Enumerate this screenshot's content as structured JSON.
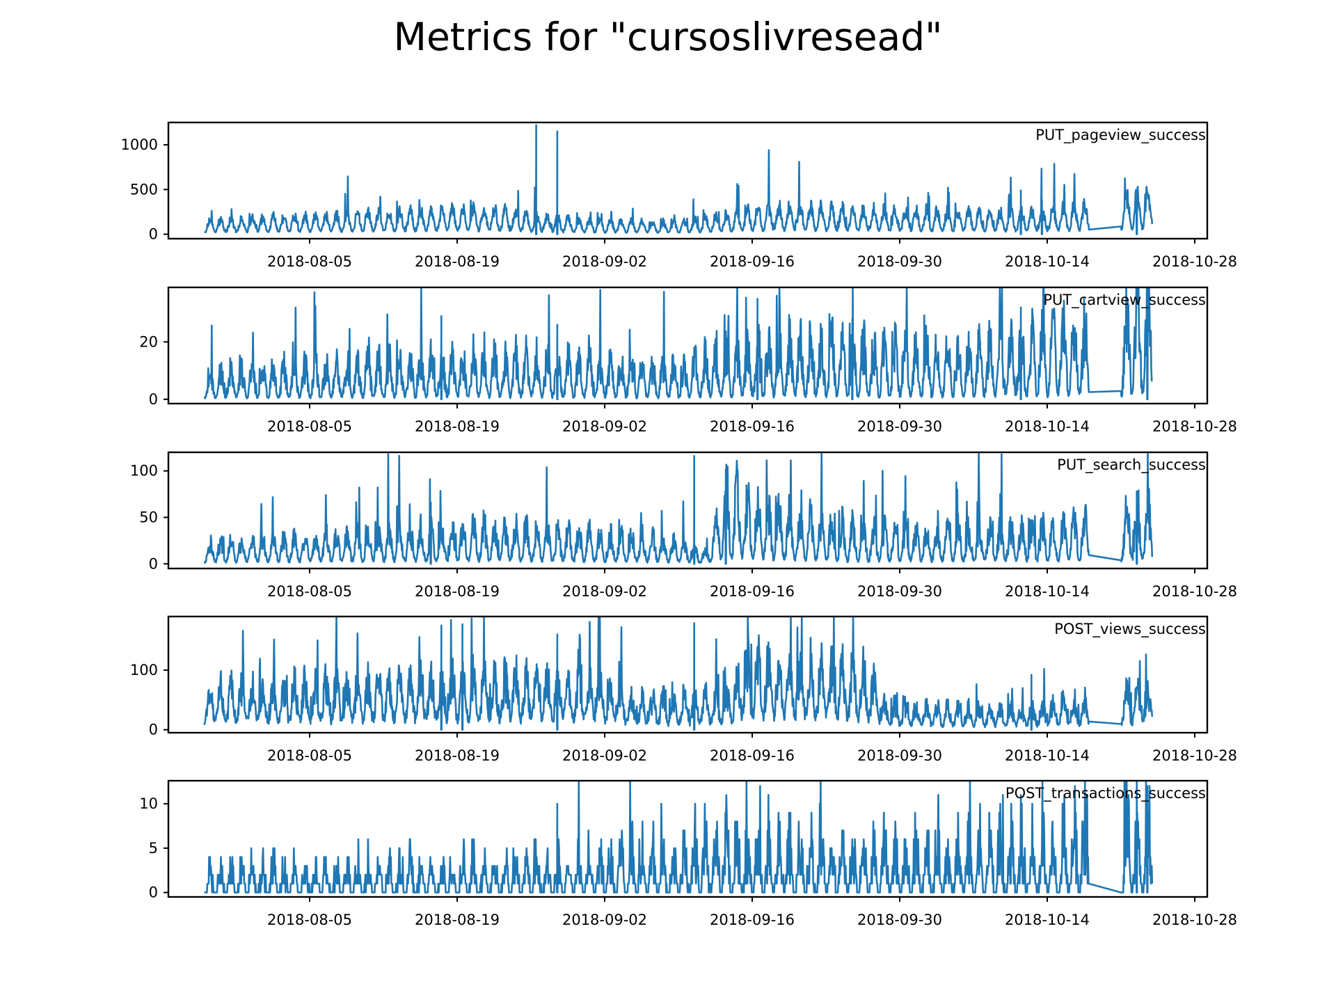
{
  "title": "Metrics for \"cursoslivresead\"",
  "colors": {
    "series": "#1f77b4",
    "axis": "#000000",
    "background": "#ffffff"
  },
  "chart_data": {
    "type": "line",
    "title": "Metrics for \"cursoslivresead\"",
    "x_range": [
      "2018-07-26",
      "2018-10-24"
    ],
    "x_ticks": [
      "2018-08-05",
      "2018-08-19",
      "2018-09-02",
      "2018-09-16",
      "2018-09-30",
      "2018-10-14",
      "2018-10-28"
    ],
    "gap": [
      "2018-10-18",
      "2018-10-21"
    ],
    "panels": [
      {
        "name": "PUT_pageview_success",
        "ylim": [
          -50,
          1250
        ],
        "yticks": [
          "0",
          "500",
          "1000"
        ],
        "base": [
          [
            0,
            90
          ],
          [
            0.2,
            140
          ],
          [
            0.3,
            170
          ],
          [
            0.33,
            140
          ],
          [
            0.4,
            90
          ],
          [
            0.5,
            75
          ],
          [
            0.6,
            180
          ],
          [
            0.65,
            170
          ],
          [
            0.75,
            150
          ],
          [
            0.82,
            140
          ],
          [
            0.88,
            150
          ],
          [
            0.93,
            190
          ],
          [
            1,
            280
          ]
        ],
        "daily_amp": 0.75,
        "noise": 0.2,
        "spikes": [
          [
            "2018-08-26",
            1220
          ],
          [
            "2018-08-28",
            1150
          ],
          [
            "2018-10-11",
            490
          ],
          [
            "2018-10-13",
            380
          ],
          [
            "2018-10-22",
            450
          ]
        ]
      },
      {
        "name": "PUT_cartview_success",
        "ylim": [
          -1.5,
          39
        ],
        "yticks": [
          "0",
          "20"
        ],
        "base": [
          [
            0,
            5
          ],
          [
            0.3,
            8
          ],
          [
            0.5,
            6
          ],
          [
            0.6,
            11
          ],
          [
            0.8,
            9
          ],
          [
            0.95,
            14
          ],
          [
            1,
            20
          ]
        ],
        "daily_amp": 0.9,
        "noise": 0.35,
        "spikes": [
          [
            "2018-08-17",
            29
          ],
          [
            "2018-08-28",
            26
          ],
          [
            "2018-09-16",
            35
          ],
          [
            "2018-09-25",
            28
          ],
          [
            "2018-10-11",
            32
          ],
          [
            "2018-10-23",
            38
          ]
        ]
      },
      {
        "name": "PUT_search_success",
        "ylim": [
          -5,
          120
        ],
        "yticks": [
          "0",
          "50",
          "100"
        ],
        "base": [
          [
            0,
            12
          ],
          [
            0.3,
            22
          ],
          [
            0.48,
            15
          ],
          [
            0.53,
            7
          ],
          [
            0.55,
            45
          ],
          [
            0.6,
            30
          ],
          [
            0.7,
            20
          ],
          [
            0.85,
            20
          ],
          [
            0.95,
            28
          ],
          [
            1,
            35
          ]
        ],
        "daily_amp": 0.85,
        "noise": 0.3,
        "spikes": [
          [
            "2018-09-10",
            116
          ],
          [
            "2018-09-13",
            102
          ],
          [
            "2018-08-16",
            66
          ],
          [
            "2018-10-22",
            68
          ]
        ]
      },
      {
        "name": "POST_views_success",
        "ylim": [
          -5,
          190
        ],
        "yticks": [
          "0",
          "100"
        ],
        "base": [
          [
            0,
            40
          ],
          [
            0.3,
            55
          ],
          [
            0.42,
            50
          ],
          [
            0.45,
            30
          ],
          [
            0.55,
            35
          ],
          [
            0.57,
            70
          ],
          [
            0.7,
            60
          ],
          [
            0.72,
            25
          ],
          [
            0.85,
            20
          ],
          [
            1,
            40
          ]
        ],
        "daily_amp": 0.65,
        "noise": 0.3,
        "spikes": [
          [
            "2018-08-17",
            175
          ],
          [
            "2018-08-19",
            177
          ],
          [
            "2018-09-10",
            179
          ],
          [
            "2018-08-28",
            160
          ],
          [
            "2018-10-12",
            92
          ]
        ]
      },
      {
        "name": "POST_transactions_success",
        "ylim": [
          -0.5,
          12.6
        ],
        "yticks": [
          "0",
          "5",
          "10"
        ],
        "base": [
          [
            0,
            1.5
          ],
          [
            0.4,
            2
          ],
          [
            0.55,
            3.5
          ],
          [
            0.7,
            3
          ],
          [
            0.9,
            3.5
          ],
          [
            1,
            6
          ]
        ],
        "daily_amp": 1,
        "noise": 0.4,
        "integer": true,
        "spikes": [
          [
            "2018-08-28",
            10
          ],
          [
            "2018-10-22",
            11
          ],
          [
            "2018-10-23",
            12
          ]
        ]
      }
    ]
  }
}
